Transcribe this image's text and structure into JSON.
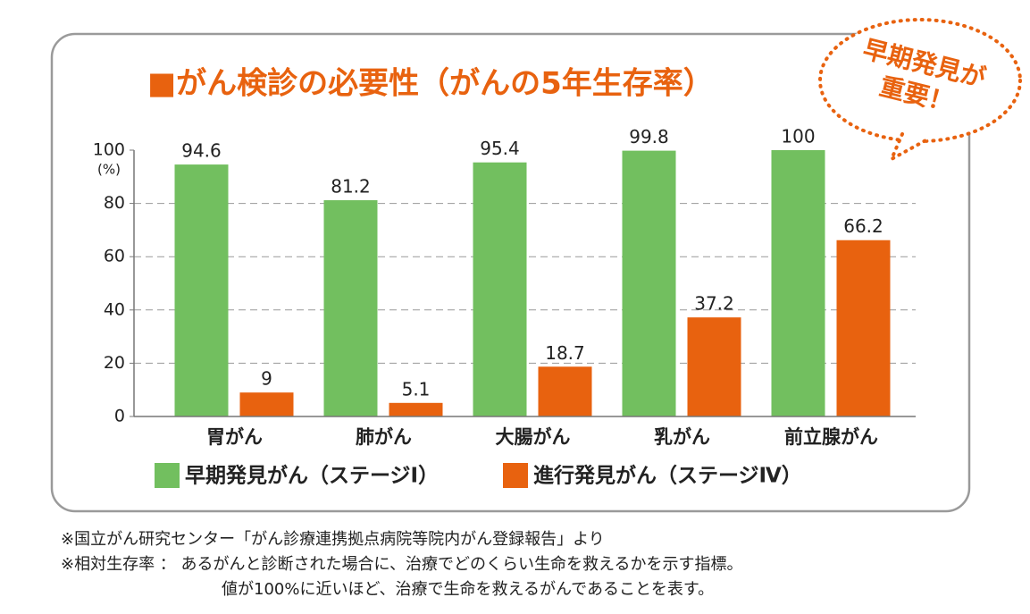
{
  "chart_data": {
    "type": "bar",
    "title": "■がん検診の必要性（がんの5年生存率）",
    "annotation": [
      "早期発見が",
      "重要！"
    ],
    "y_unit": "(%)",
    "categories": [
      "胃がん",
      "肺がん",
      "大腸がん",
      "乳がん",
      "前立腺がん"
    ],
    "series": [
      {
        "name": "早期発見がん（ステージⅠ）",
        "color": "#72bf5f",
        "values": [
          94.6,
          81.2,
          95.4,
          99.8,
          100
        ]
      },
      {
        "name": "進行発見がん（ステージⅣ）",
        "color": "#e8620f",
        "values": [
          9,
          5.1,
          18.7,
          37.2,
          66.2
        ]
      }
    ],
    "ylim": [
      0,
      100
    ],
    "yticks": [
      0,
      20,
      40,
      60,
      80,
      100
    ],
    "grid": true,
    "notes": [
      "※国立がん研究センター「がん診療連携拠点病院等院内がん登録報告」より",
      "※相対生存率 ： あるがんと診断された場合に、治療でどのくらい生命を救えるかを示す指標。",
      "値が100%に近いほど、治療で生命を救えるがんであることを表す。"
    ]
  }
}
